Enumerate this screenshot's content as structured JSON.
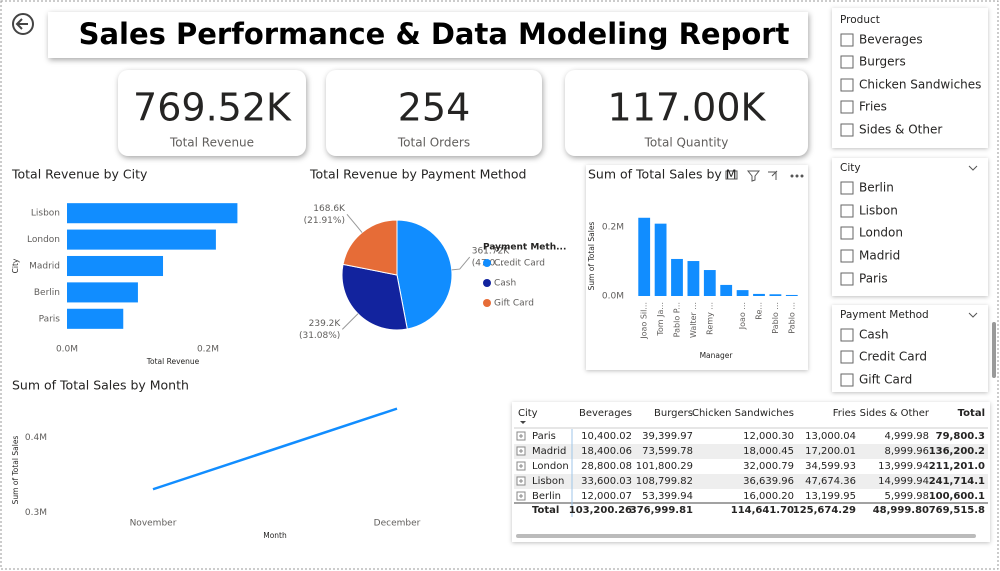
{
  "header": {
    "title": "Sales Performance & Data Modeling Report"
  },
  "kpis": [
    {
      "value": "769.52K",
      "label": "Total Revenue"
    },
    {
      "value": "254",
      "label": "Total Orders"
    },
    {
      "value": "117.00K",
      "label": "Total Quantity"
    }
  ],
  "slicers": [
    {
      "title": "Product",
      "items": [
        "Beverages",
        "Burgers",
        "Chicken Sandwiches",
        "Fries",
        "Sides & Other"
      ]
    },
    {
      "title": "City",
      "items": [
        "Berlin",
        "Lisbon",
        "London",
        "Madrid",
        "Paris"
      ]
    },
    {
      "title": "Payment Method",
      "items": [
        "Cash",
        "Credit Card",
        "Gift Card"
      ]
    }
  ],
  "chart_data": [
    {
      "type": "bar",
      "orientation": "horizontal",
      "title": "Total Revenue by City",
      "x_label": "Total Revenue",
      "y_label": "City",
      "categories": [
        "Lisbon",
        "London",
        "Madrid",
        "Berlin",
        "Paris"
      ],
      "values": [
        241714.1,
        211201.0,
        136200.2,
        100600.1,
        79800.3
      ],
      "color": "#118dff",
      "xlim": [
        0,
        250000
      ],
      "xticks": [
        {
          "value": 0,
          "label": "0.0M"
        },
        {
          "value": 200000,
          "label": "0.2M"
        }
      ]
    },
    {
      "type": "pie",
      "title": "Total Revenue by Payment Method",
      "legend_title": "Payment Meth...",
      "categories": [
        "Credit Card",
        "Cash",
        "Gift Card"
      ],
      "values": [
        361720,
        239200,
        168600
      ],
      "value_labels": [
        "361.72K",
        "239.2K",
        "168.6K"
      ],
      "percent_labels": [
        "(47.0...",
        "(31.08%)",
        "(21.91%)"
      ],
      "colors": [
        "#118dff",
        "#12239e",
        "#e66c37"
      ]
    },
    {
      "type": "bar",
      "orientation": "vertical",
      "title": "Sum of Total Sales by M",
      "x_label": "Manager",
      "y_label": "Sum of Total Sales",
      "categories": [
        "Joao Sil...",
        "Tom Ja...",
        "Pablo P...",
        "Walter ...",
        "Remy ...",
        null,
        "Joao ...",
        "Re...",
        "Pablo ...",
        "Pablo ..."
      ],
      "values": [
        226000,
        209000,
        107000,
        101000,
        75000,
        32000,
        17000,
        6000,
        5000,
        3000
      ],
      "color": "#118dff",
      "ylim": [
        0,
        260000
      ],
      "yticks": [
        {
          "value": 0,
          "label": "0.0M"
        },
        {
          "value": 200000,
          "label": "0.2M"
        }
      ]
    },
    {
      "type": "line",
      "title": "Sum of Total Sales by Month",
      "x_label": "Month",
      "y_label": "Sum of Total Sales",
      "categories": [
        "November",
        "December"
      ],
      "values": [
        331000,
        438500
      ],
      "color": "#118dff",
      "ylim": [
        290000,
        450000
      ],
      "yticks": [
        {
          "value": 300000,
          "label": "0.3M"
        },
        {
          "value": 400000,
          "label": "0.4M"
        }
      ]
    }
  ],
  "table": {
    "columns": [
      "City",
      "Beverages",
      "Burgers",
      "Chicken Sandwiches",
      "Fries",
      "Sides & Other",
      "Total"
    ],
    "rows": [
      [
        "Paris",
        "10,400.02",
        "39,399.97",
        "12,000.30",
        "13,000.04",
        "4,999.98",
        "79,800.3"
      ],
      [
        "Madrid",
        "18,400.06",
        "73,599.78",
        "18,000.45",
        "17,200.01",
        "8,999.96",
        "136,200.2"
      ],
      [
        "London",
        "28,800.08",
        "101,800.29",
        "32,000.79",
        "34,599.93",
        "13,999.94",
        "211,201.0"
      ],
      [
        "Lisbon",
        "33,600.03",
        "108,799.82",
        "36,639.96",
        "47,674.36",
        "14,999.94",
        "241,714.1"
      ],
      [
        "Berlin",
        "12,000.07",
        "53,399.94",
        "16,000.20",
        "13,199.95",
        "5,999.98",
        "100,600.1"
      ]
    ],
    "total_row": [
      "Total",
      "103,200.26",
      "376,999.81",
      "114,641.70",
      "125,674.29",
      "48,999.80",
      "769,515.8"
    ]
  }
}
